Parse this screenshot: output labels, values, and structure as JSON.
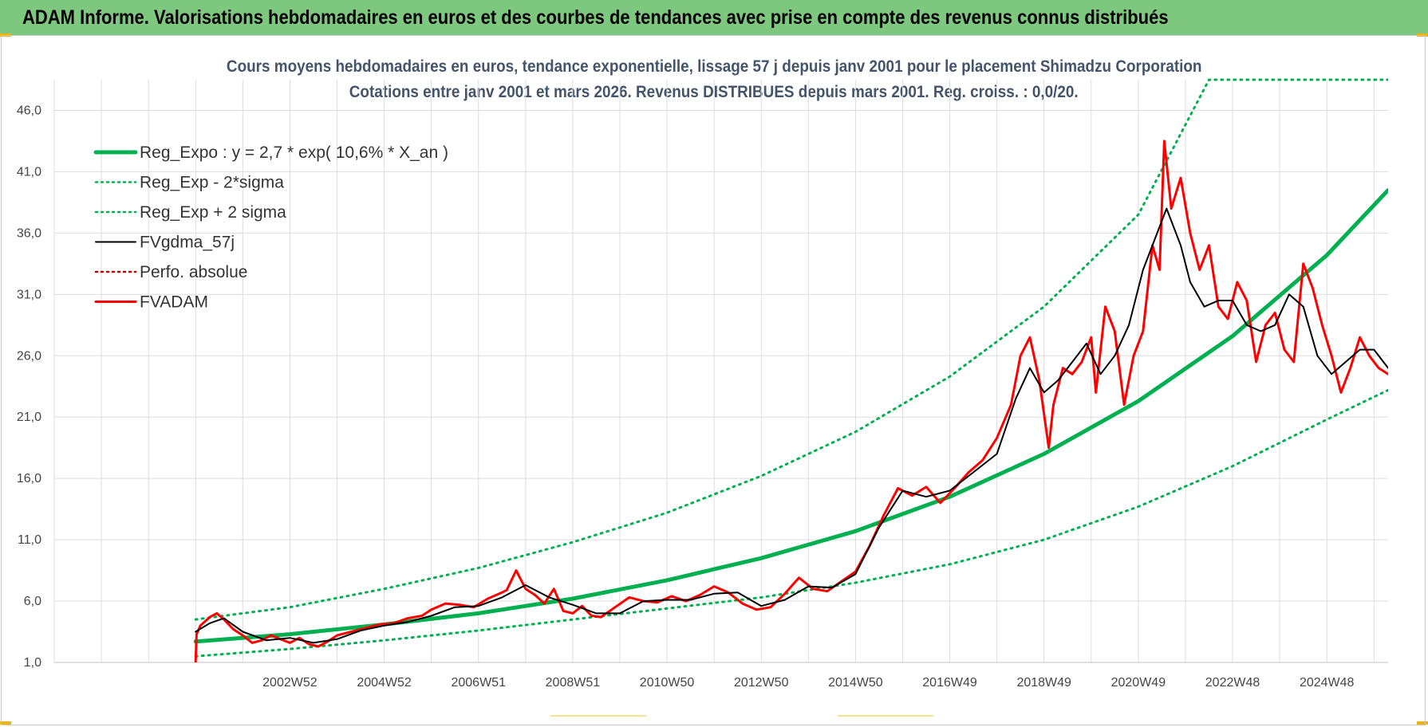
{
  "banner": {
    "title": "ADAM Informe. Valorisations hebdomadaires en euros et des courbes de tendances avec prise en compte des revenus connus distribués",
    "color": "#7ec77e"
  },
  "chart_data": {
    "type": "line",
    "title": "Cours moyens hebdomadaires en euros, tendance exponentielle, lissage 57 j depuis janv 2001 pour le placement Shimadzu Corporation",
    "subtitle": "Cotations entre janv 2001 et mars 2026. Revenus DISTRIBUES depuis mars 2001. Reg. croiss. : 0,0/20.",
    "xlabel": "",
    "ylabel": "",
    "ylim": [
      1,
      48.5
    ],
    "xlim": [
      1998.0,
      2026.3
    ],
    "y_ticks": [
      "1,0",
      "6,0",
      "11,0",
      "16,0",
      "21,0",
      "26,0",
      "31,0",
      "36,0",
      "41,0",
      "46,0"
    ],
    "x_ticks": [
      {
        "label": "2002W52",
        "x": 2003.0
      },
      {
        "label": "2004W52",
        "x": 2005.0
      },
      {
        "label": "2006W51",
        "x": 2007.0
      },
      {
        "label": "2008W51",
        "x": 2009.0
      },
      {
        "label": "2010W50",
        "x": 2011.0
      },
      {
        "label": "2012W50",
        "x": 2013.0
      },
      {
        "label": "2014W50",
        "x": 2015.0
      },
      {
        "label": "2016W49",
        "x": 2017.0
      },
      {
        "label": "2018W49",
        "x": 2019.0
      },
      {
        "label": "2020W49",
        "x": 2021.0
      },
      {
        "label": "2022W48",
        "x": 2023.0
      },
      {
        "label": "2024W48",
        "x": 2025.0
      }
    ],
    "grid": true,
    "legend_position": "top-left",
    "series": [
      {
        "name": "Reg_Expo : y = 2,7 * exp( 10,6% *  X_an )",
        "color": "#00b050",
        "style": "solid-thick",
        "x": [
          2001.0,
          2003.0,
          2005.0,
          2007.0,
          2009.0,
          2011.0,
          2013.0,
          2015.0,
          2017.0,
          2019.0,
          2021.0,
          2023.0,
          2025.0,
          2026.3
        ],
        "y": [
          2.7,
          3.3,
          4.1,
          5.0,
          6.2,
          7.7,
          9.5,
          11.7,
          14.5,
          18.0,
          22.3,
          27.6,
          34.2,
          39.5
        ]
      },
      {
        "name": "Reg_Exp - 2*sigma",
        "color": "#00b050",
        "style": "dotted",
        "x": [
          2001.0,
          2003.0,
          2005.0,
          2007.0,
          2009.0,
          2011.0,
          2013.0,
          2015.0,
          2017.0,
          2019.0,
          2021.0,
          2023.0,
          2025.0,
          2026.3
        ],
        "y": [
          1.5,
          2.1,
          2.8,
          3.6,
          4.5,
          5.4,
          6.3,
          7.5,
          9.0,
          11.0,
          13.7,
          17.0,
          20.8,
          23.2
        ]
      },
      {
        "name": "Reg_Exp + 2 sigma",
        "color": "#00b050",
        "style": "dotted",
        "x": [
          2001.0,
          2003.0,
          2005.0,
          2007.0,
          2009.0,
          2011.0,
          2013.0,
          2015.0,
          2017.0,
          2019.0,
          2021.0,
          2022.5,
          2026.3
        ],
        "y": [
          4.5,
          5.5,
          7.0,
          8.7,
          10.8,
          13.2,
          16.2,
          19.8,
          24.3,
          30.0,
          37.5,
          48.5,
          48.5
        ]
      },
      {
        "name": "FVgdma_57j",
        "color": "#000000",
        "style": "solid",
        "x": [
          2001.0,
          2001.3,
          2001.6,
          2002.0,
          2002.5,
          2003.0,
          2003.5,
          2004.0,
          2004.5,
          2005.0,
          2005.5,
          2006.0,
          2006.5,
          2007.0,
          2007.5,
          2008.0,
          2008.5,
          2009.0,
          2009.5,
          2010.0,
          2010.5,
          2011.0,
          2011.5,
          2012.0,
          2012.5,
          2013.0,
          2013.5,
          2014.0,
          2014.5,
          2015.0,
          2015.5,
          2016.0,
          2016.5,
          2017.0,
          2017.5,
          2018.0,
          2018.4,
          2018.7,
          2019.0,
          2019.3,
          2019.6,
          2019.9,
          2020.2,
          2020.5,
          2020.8,
          2021.1,
          2021.4,
          2021.6,
          2021.9,
          2022.1,
          2022.4,
          2022.7,
          2023.0,
          2023.3,
          2023.6,
          2023.9,
          2024.2,
          2024.5,
          2024.8,
          2025.1,
          2025.4,
          2025.7,
          2026.0,
          2026.3
        ],
        "y": [
          3.5,
          4.2,
          4.6,
          3.5,
          2.8,
          3.0,
          2.6,
          2.9,
          3.6,
          4.0,
          4.3,
          4.8,
          5.5,
          5.6,
          6.3,
          7.3,
          6.3,
          5.7,
          5.0,
          5.0,
          6.0,
          6.1,
          6.1,
          6.6,
          6.7,
          5.6,
          6.1,
          7.2,
          7.1,
          8.2,
          12.0,
          15.0,
          14.5,
          15.0,
          16.5,
          18.0,
          22.5,
          25.0,
          23.0,
          24.0,
          25.5,
          27.0,
          24.5,
          26.0,
          28.5,
          33.0,
          36.0,
          38.0,
          35.0,
          32.0,
          30.0,
          30.5,
          30.5,
          28.5,
          28.0,
          28.5,
          31.0,
          30.0,
          26.0,
          24.5,
          25.5,
          26.5,
          26.5,
          25.0
        ]
      },
      {
        "name": "Perfo. absolue",
        "color": "#c00000",
        "style": "dotted",
        "x": [],
        "y": []
      },
      {
        "name": "FVADAM",
        "color": "#ff0000",
        "style": "solid-thick",
        "x": [
          2001.0,
          2001.02,
          2001.1,
          2001.3,
          2001.45,
          2001.6,
          2001.8,
          2002.0,
          2002.2,
          2002.4,
          2002.6,
          2002.8,
          2003.0,
          2003.2,
          2003.4,
          2003.6,
          2003.8,
          2004.0,
          2004.3,
          2004.6,
          2004.9,
          2005.2,
          2005.5,
          2005.8,
          2006.0,
          2006.3,
          2006.6,
          2006.9,
          2007.2,
          2007.5,
          2007.6,
          2007.8,
          2008.0,
          2008.2,
          2008.4,
          2008.6,
          2008.8,
          2009.0,
          2009.2,
          2009.4,
          2009.6,
          2009.9,
          2010.2,
          2010.5,
          2010.8,
          2011.1,
          2011.4,
          2011.7,
          2012.0,
          2012.3,
          2012.6,
          2012.9,
          2013.2,
          2013.5,
          2013.8,
          2014.1,
          2014.4,
          2014.7,
          2015.0,
          2015.3,
          2015.6,
          2015.9,
          2016.2,
          2016.5,
          2016.8,
          2017.1,
          2017.4,
          2017.7,
          2018.0,
          2018.3,
          2018.5,
          2018.7,
          2018.9,
          2019.1,
          2019.2,
          2019.4,
          2019.6,
          2019.8,
          2020.0,
          2020.1,
          2020.3,
          2020.5,
          2020.7,
          2020.9,
          2021.1,
          2021.3,
          2021.45,
          2021.55,
          2021.7,
          2021.9,
          2022.1,
          2022.3,
          2022.5,
          2022.7,
          2022.9,
          2023.1,
          2023.3,
          2023.5,
          2023.7,
          2023.9,
          2024.1,
          2024.3,
          2024.5,
          2024.7,
          2024.9,
          2025.1,
          2025.3,
          2025.5,
          2025.7,
          2025.9,
          2026.1,
          2026.3
        ],
        "y": [
          1.0,
          3.3,
          4.0,
          4.7,
          5.0,
          4.5,
          3.7,
          3.2,
          2.6,
          2.8,
          3.2,
          2.9,
          2.6,
          3.0,
          2.5,
          2.3,
          2.7,
          3.2,
          3.5,
          3.8,
          4.1,
          4.2,
          4.6,
          4.8,
          5.3,
          5.8,
          5.7,
          5.5,
          6.2,
          6.7,
          6.9,
          8.5,
          7.0,
          6.5,
          5.8,
          7.0,
          5.2,
          5.0,
          5.6,
          4.8,
          4.7,
          5.5,
          6.3,
          6.0,
          5.9,
          6.4,
          6.0,
          6.5,
          7.2,
          6.7,
          5.8,
          5.3,
          5.5,
          6.6,
          7.9,
          7.0,
          6.8,
          7.6,
          8.4,
          10.5,
          13.0,
          15.2,
          14.6,
          15.3,
          14.0,
          15.2,
          16.5,
          17.5,
          19.3,
          22.0,
          26.0,
          27.5,
          24.0,
          18.5,
          22.0,
          25.0,
          24.5,
          25.5,
          27.5,
          23.0,
          30.0,
          28.0,
          22.0,
          26.0,
          28.0,
          35.0,
          33.0,
          43.5,
          38.0,
          40.5,
          36.0,
          33.0,
          35.0,
          30.0,
          29.0,
          32.0,
          30.5,
          25.5,
          28.5,
          29.5,
          26.5,
          25.5,
          33.5,
          31.5,
          28.5,
          26.0,
          23.0,
          25.0,
          27.5,
          26.0,
          25.0,
          24.5
        ]
      }
    ],
    "legend": [
      {
        "label": "Reg_Expo : y = 2,7 * exp( 10,6% *  X_an )",
        "color": "#00b050",
        "style": "solid-thick"
      },
      {
        "label": "Reg_Exp - 2*sigma",
        "color": "#00b050",
        "style": "dotted"
      },
      {
        "label": "Reg_Exp + 2 sigma",
        "color": "#00b050",
        "style": "dotted"
      },
      {
        "label": "FVgdma_57j",
        "color": "#000000",
        "style": "solid"
      },
      {
        "label": "Perfo. absolue",
        "color": "#c00000",
        "style": "dotted"
      },
      {
        "label": "FVADAM",
        "color": "#ff0000",
        "style": "solid-thick"
      }
    ]
  }
}
